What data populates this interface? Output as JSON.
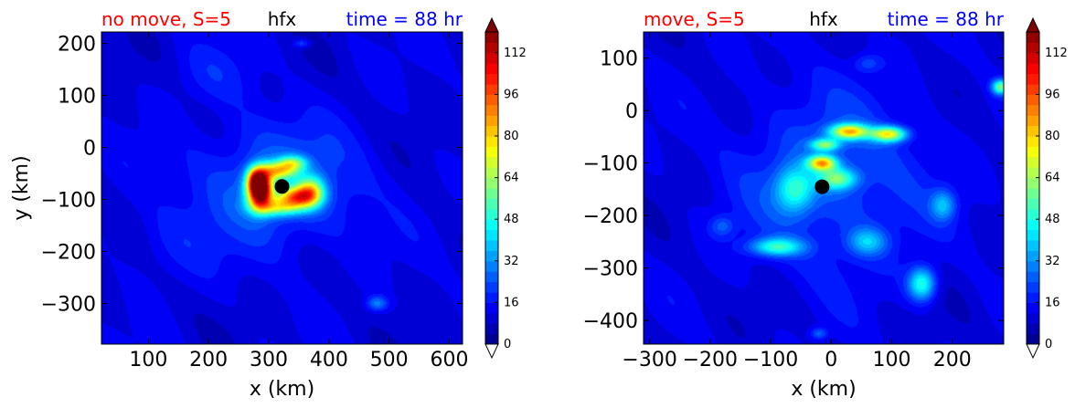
{
  "chart_data": [
    {
      "type": "heatmap",
      "title_left": "no move, S=5",
      "title_center": "hfx",
      "title_right": "time = 88 hr",
      "xlabel": "x (km)",
      "ylabel": "y (km)",
      "xlim": [
        22,
        622
      ],
      "ylim": [
        -378,
        222
      ],
      "x_ticks": [
        100,
        200,
        300,
        400,
        500,
        600
      ],
      "y_ticks": [
        200,
        100,
        0,
        -100,
        -200,
        -300
      ],
      "colorbar": {
        "min": 0,
        "max": 120,
        "step": 4,
        "ticks": [
          0,
          16,
          32,
          48,
          64,
          80,
          96,
          112
        ],
        "extend": "both"
      },
      "center_marker": {
        "x": 322,
        "y": -75
      },
      "features": [
        {
          "x": 285,
          "y": -80,
          "sx": 14,
          "sy": 24,
          "amp": 125
        },
        {
          "x": 278,
          "y": -60,
          "sx": 10,
          "sy": 14,
          "amp": 35
        },
        {
          "x": 315,
          "y": -45,
          "sx": 22,
          "sy": 12,
          "amp": 50
        },
        {
          "x": 340,
          "y": -30,
          "sx": 16,
          "sy": 10,
          "amp": 35
        },
        {
          "x": 345,
          "y": -95,
          "sx": 22,
          "sy": 14,
          "amp": 60
        },
        {
          "x": 370,
          "y": -85,
          "sx": 16,
          "sy": 20,
          "amp": 48
        },
        {
          "x": 315,
          "y": -115,
          "sx": 28,
          "sy": 12,
          "amp": 40
        },
        {
          "x": 310,
          "y": -75,
          "sx": 100,
          "sy": 85,
          "amp": 16
        },
        {
          "x": 480,
          "y": -300,
          "sx": 12,
          "sy": 10,
          "amp": 18
        },
        {
          "x": 355,
          "y": 200,
          "sx": 10,
          "sy": 6,
          "amp": 14
        },
        {
          "x": 130,
          "y": -190,
          "sx": 50,
          "sy": 50,
          "amp": 5
        },
        {
          "x": 210,
          "y": 140,
          "sx": 50,
          "sy": 40,
          "amp": 5
        }
      ]
    },
    {
      "type": "heatmap",
      "title_left": "move, S=5",
      "title_center": "hfx",
      "title_right": "time = 88 hr",
      "xlabel": "x (km)",
      "ylabel": "",
      "xlim": [
        -310,
        285
      ],
      "ylim": [
        -445,
        150
      ],
      "x_ticks": [
        -300,
        -200,
        -100,
        0,
        100,
        200
      ],
      "y_ticks": [
        100,
        0,
        -100,
        -200,
        -300,
        -400
      ],
      "colorbar": {
        "min": 0,
        "max": 120,
        "step": 4,
        "ticks": [
          0,
          16,
          32,
          48,
          64,
          80,
          96,
          112
        ],
        "extend": "both"
      },
      "center_marker": {
        "x": -15,
        "y": -145
      },
      "features": [
        {
          "x": 30,
          "y": -40,
          "sx": 22,
          "sy": 10,
          "amp": 62
        },
        {
          "x": 95,
          "y": -45,
          "sx": 20,
          "sy": 10,
          "amp": 58
        },
        {
          "x": -10,
          "y": -65,
          "sx": 16,
          "sy": 8,
          "amp": 40
        },
        {
          "x": -15,
          "y": -100,
          "sx": 16,
          "sy": 10,
          "amp": 62
        },
        {
          "x": 10,
          "y": -130,
          "sx": 22,
          "sy": 14,
          "amp": 38
        },
        {
          "x": -60,
          "y": -150,
          "sx": 22,
          "sy": 30,
          "amp": 30
        },
        {
          "x": -90,
          "y": -260,
          "sx": 30,
          "sy": 12,
          "amp": 35
        },
        {
          "x": 150,
          "y": -330,
          "sx": 16,
          "sy": 22,
          "amp": 38
        },
        {
          "x": 60,
          "y": -250,
          "sx": 22,
          "sy": 18,
          "amp": 22
        },
        {
          "x": 280,
          "y": 45,
          "sx": 10,
          "sy": 10,
          "amp": 45
        },
        {
          "x": 185,
          "y": -180,
          "sx": 14,
          "sy": 20,
          "amp": 22
        },
        {
          "x": 0,
          "y": -130,
          "sx": 110,
          "sy": 120,
          "amp": 14
        },
        {
          "x": 60,
          "y": 90,
          "sx": 16,
          "sy": 12,
          "amp": 10
        },
        {
          "x": -180,
          "y": -220,
          "sx": 14,
          "sy": 14,
          "amp": 12
        },
        {
          "x": -20,
          "y": -425,
          "sx": 10,
          "sy": 8,
          "amp": 15
        }
      ]
    }
  ]
}
